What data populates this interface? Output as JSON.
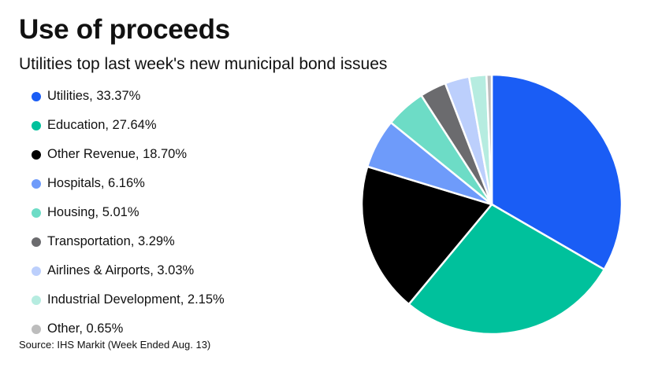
{
  "chart_data": {
    "type": "pie",
    "title": "Use of proceeds",
    "subtitle": "Utilities top last week's new municipal bond issues",
    "source": "Source: IHS Markit (Week Ended Aug. 13)",
    "legend_position": "left",
    "slices": [
      {
        "name": "Utilities",
        "value": 33.37,
        "label": "Utilities, 33.37%",
        "color": "#1a5df5"
      },
      {
        "name": "Education",
        "value": 27.64,
        "label": "Education, 27.64%",
        "color": "#00c19c"
      },
      {
        "name": "Other Revenue",
        "value": 18.7,
        "label": "Other Revenue, 18.70%",
        "color": "#000000"
      },
      {
        "name": "Hospitals",
        "value": 6.16,
        "label": "Hospitals, 6.16%",
        "color": "#6e9bfa"
      },
      {
        "name": "Housing",
        "value": 5.01,
        "label": "Housing, 5.01%",
        "color": "#6ddcc6"
      },
      {
        "name": "Transportation",
        "value": 3.29,
        "label": "Transportation, 3.29%",
        "color": "#6b6b6e"
      },
      {
        "name": "Airlines & Airports",
        "value": 3.03,
        "label": "Airlines & Airports, 3.03%",
        "color": "#bccffc"
      },
      {
        "name": "Industrial Development",
        "value": 2.15,
        "label": "Industrial Development, 2.15%",
        "color": "#b6ece0"
      },
      {
        "name": "Other",
        "value": 0.65,
        "label": "Other, 0.65%",
        "color": "#bdbdbd"
      }
    ]
  }
}
